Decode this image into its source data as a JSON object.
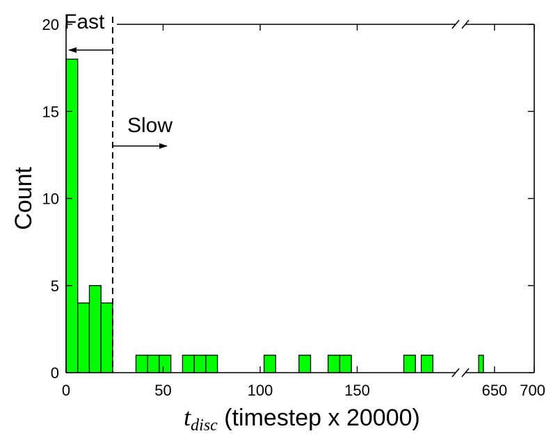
{
  "chart_data": {
    "type": "bar",
    "title": "",
    "xlabel_var": "t",
    "xlabel_sub": "disc",
    "xlabel_rest": " (timestep x 20000)",
    "ylabel": "Count",
    "ylim": [
      0,
      20
    ],
    "yticks": [
      0,
      5,
      10,
      15,
      20
    ],
    "ytick_labels": [
      "0",
      "5",
      "10",
      "15",
      "20"
    ],
    "x_segments": [
      {
        "range": [
          0,
          200
        ],
        "ticks": [
          0,
          50,
          100,
          150
        ],
        "tick_labels": [
          "0",
          "50",
          "100",
          "150"
        ]
      },
      {
        "range": [
          615,
          700
        ],
        "ticks": [
          650,
          700
        ],
        "tick_labels": [
          "650",
          "700"
        ]
      }
    ],
    "axis_break": true,
    "bin_width": 6,
    "bars": [
      {
        "x": 0,
        "count": 18
      },
      {
        "x": 6,
        "count": 4
      },
      {
        "x": 12,
        "count": 5
      },
      {
        "x": 18,
        "count": 4
      },
      {
        "x": 36,
        "count": 1
      },
      {
        "x": 42,
        "count": 1
      },
      {
        "x": 48,
        "count": 1
      },
      {
        "x": 60,
        "count": 1
      },
      {
        "x": 66,
        "count": 1
      },
      {
        "x": 72,
        "count": 1
      },
      {
        "x": 102,
        "count": 1
      },
      {
        "x": 120,
        "count": 1
      },
      {
        "x": 135,
        "count": 1
      },
      {
        "x": 141,
        "count": 1
      },
      {
        "x": 174,
        "count": 1
      },
      {
        "x": 183,
        "count": 1
      },
      {
        "x": 630,
        "count": 1
      }
    ],
    "threshold_x": 24,
    "annotations": {
      "fast": "Fast",
      "slow": "Slow"
    },
    "colors": {
      "bar_fill": "#00ff00",
      "bar_edge": "#000000"
    }
  }
}
